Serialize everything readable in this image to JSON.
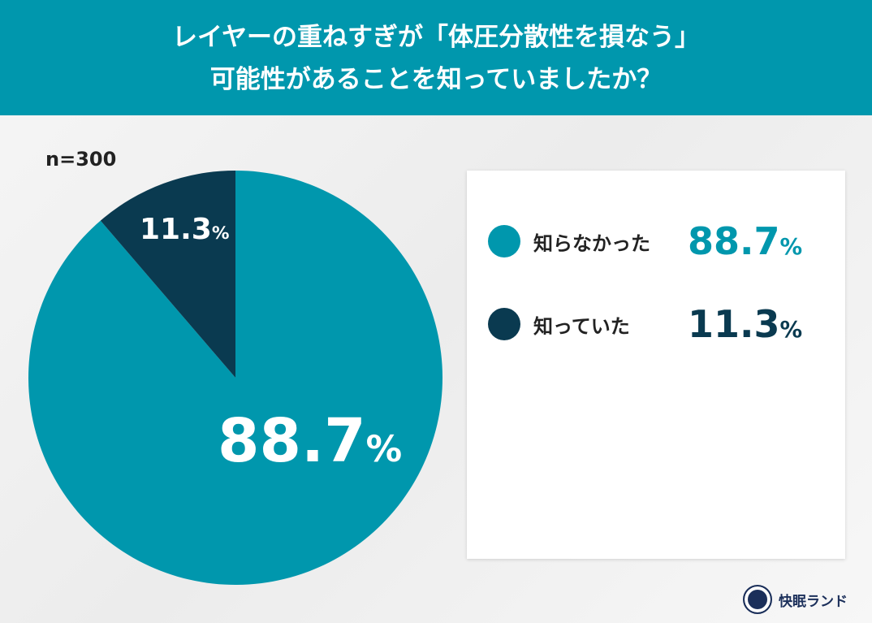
{
  "title": {
    "line1": "レイヤーの重ねすぎが「体圧分散性を損なう」",
    "line2": "可能性があることを知っていましたか？"
  },
  "sample_size": "n=300",
  "brand": "快眠ランド",
  "colors": {
    "teal": "#0097ad",
    "navy": "#0a3a50"
  },
  "chart_data": {
    "type": "pie",
    "title": "レイヤーの重ねすぎが「体圧分散性を損なう」可能性があることを知っていましたか？",
    "categories": [
      "知らなかった",
      "知っていた"
    ],
    "values": [
      88.7,
      11.3
    ],
    "labels": [
      "88.7",
      "11.3"
    ],
    "unit": "%",
    "legend": "right"
  }
}
